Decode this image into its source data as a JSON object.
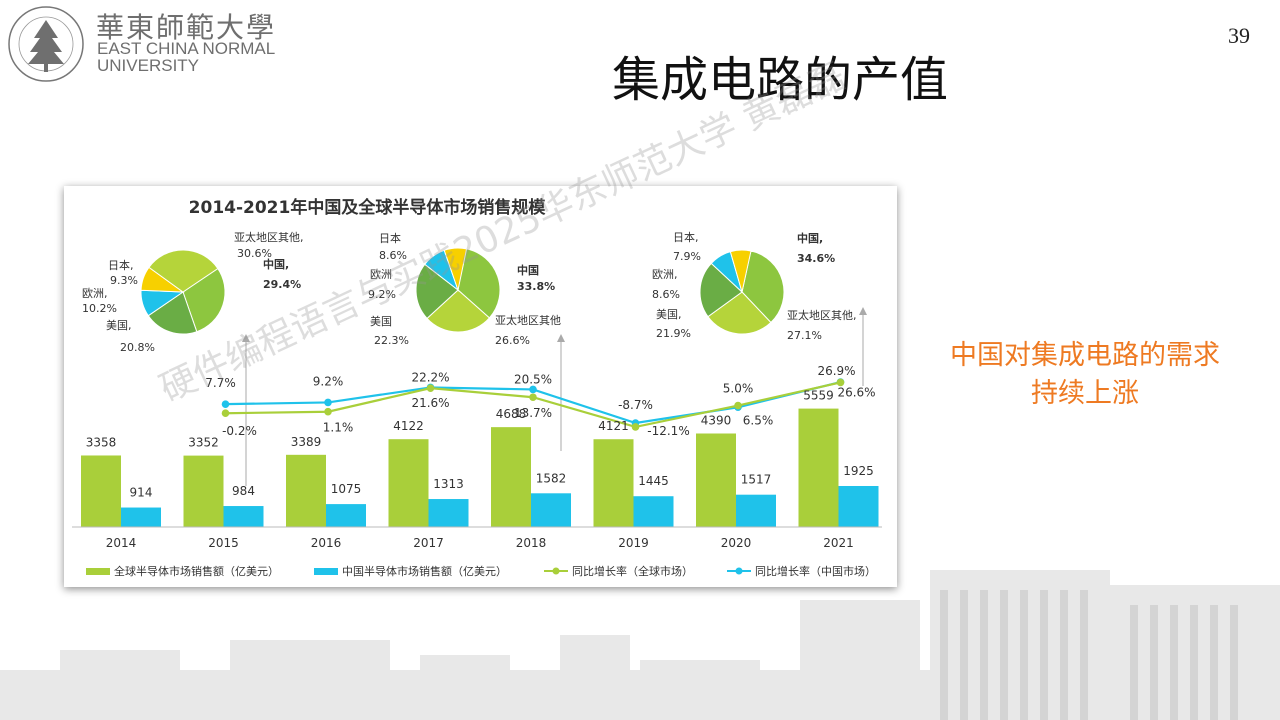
{
  "header": {
    "logo_cn": "華東師範大學",
    "logo_en_line1": "EAST CHINA NORMAL",
    "logo_en_line2": "UNIVERSITY",
    "logo_seal_text": "EAST CHINA NORMAL UNIVERSITY",
    "page_number": "39"
  },
  "slide": {
    "title": "集成电路的产值",
    "side_note_line1": "中国对集成电路的需求",
    "side_note_line2": "持续上涨",
    "watermark": "硬件编程语言与实践2025华东师范大学 黄磊磊"
  },
  "chart_data": {
    "type": "bar",
    "title": "2014-2021年中国及全球半导体市场销售规模",
    "categories": [
      "2014",
      "2015",
      "2016",
      "2017",
      "2018",
      "2019",
      "2020",
      "2021"
    ],
    "series": [
      {
        "name": "全球半导体市场销售额（亿美元）",
        "kind": "bar",
        "color": "#a9cf3a",
        "values": [
          3358,
          3352,
          3389,
          4122,
          4688,
          4121,
          4390,
          5559
        ]
      },
      {
        "name": "中国半导体市场销售额（亿美元）",
        "kind": "bar",
        "color": "#1fc2ea",
        "values": [
          914,
          984,
          1075,
          1313,
          1582,
          1445,
          1517,
          1925
        ]
      },
      {
        "name": "同比增长率（全球市场）",
        "kind": "line",
        "color": "#a9cf3a",
        "values": [
          null,
          -0.2,
          1.1,
          21.6,
          13.7,
          -12.1,
          6.5,
          26.6
        ]
      },
      {
        "name": "同比增长率（中国市场）",
        "kind": "line",
        "color": "#1fc2ea",
        "values": [
          null,
          7.7,
          9.2,
          22.2,
          20.5,
          -8.7,
          5.0,
          26.9
        ]
      }
    ],
    "bar_labels_global": [
      "3358",
      "3352",
      "3389",
      "4122",
      "4688",
      "4121",
      "4390",
      "5559"
    ],
    "bar_labels_china": [
      "914",
      "984",
      "1075",
      "1313",
      "1582",
      "1445",
      "1517",
      "1925"
    ],
    "growth_labels_global": [
      "",
      "-0.2%",
      "1.1%",
      "21.6%",
      "13.7%",
      "-12.1%",
      "6.5%",
      "26.6%"
    ],
    "growth_labels_china": [
      "",
      "7.7%",
      "9.2%",
      "22.2%",
      "20.5%",
      "-8.7%",
      "5.0%",
      "26.9%"
    ],
    "pies": [
      {
        "year": "2015",
        "slices": [
          {
            "label": "中国,",
            "value_label": "29.4%",
            "value": 29.4,
            "color": "#8dc63f",
            "bold": true
          },
          {
            "label": "美国,",
            "value_label": "20.8%",
            "value": 20.8,
            "color": "#6aad45"
          },
          {
            "label": "欧洲,",
            "value_label": "10.2%",
            "value": 10.2,
            "color": "#1fc2ea"
          },
          {
            "label": "日本,",
            "value_label": "9.3%",
            "value": 9.3,
            "color": "#f7d000"
          },
          {
            "label": "亚太地区其他,",
            "value_label": "30.6%",
            "value": 30.6,
            "color": "#b5d43a"
          }
        ]
      },
      {
        "year": "2018",
        "slices": [
          {
            "label": "中国",
            "value_label": "33.8%",
            "value": 33.8,
            "color": "#8dc63f",
            "bold": true
          },
          {
            "label": "亚太地区其他",
            "value_label": "26.6%",
            "value": 26.6,
            "color": "#b5d43a"
          },
          {
            "label": "美国",
            "value_label": "22.3%",
            "value": 22.3,
            "color": "#6aad45"
          },
          {
            "label": "欧洲",
            "value_label": "9.2%",
            "value": 9.2,
            "color": "#1fc2ea"
          },
          {
            "label": "日本",
            "value_label": "8.6%",
            "value": 8.6,
            "color": "#f7d000"
          }
        ]
      },
      {
        "year": "2021",
        "slices": [
          {
            "label": "中国,",
            "value_label": "34.6%",
            "value": 34.6,
            "color": "#8dc63f",
            "bold": true
          },
          {
            "label": "亚太地区其他,",
            "value_label": "27.1%",
            "value": 27.1,
            "color": "#b5d43a"
          },
          {
            "label": "美国,",
            "value_label": "21.9%",
            "value": 21.9,
            "color": "#6aad45"
          },
          {
            "label": "欧洲,",
            "value_label": "8.6%",
            "value": 8.6,
            "color": "#1fc2ea"
          },
          {
            "label": "日本,",
            "value_label": "7.9%",
            "value": 7.9,
            "color": "#f7d000"
          }
        ]
      }
    ]
  }
}
